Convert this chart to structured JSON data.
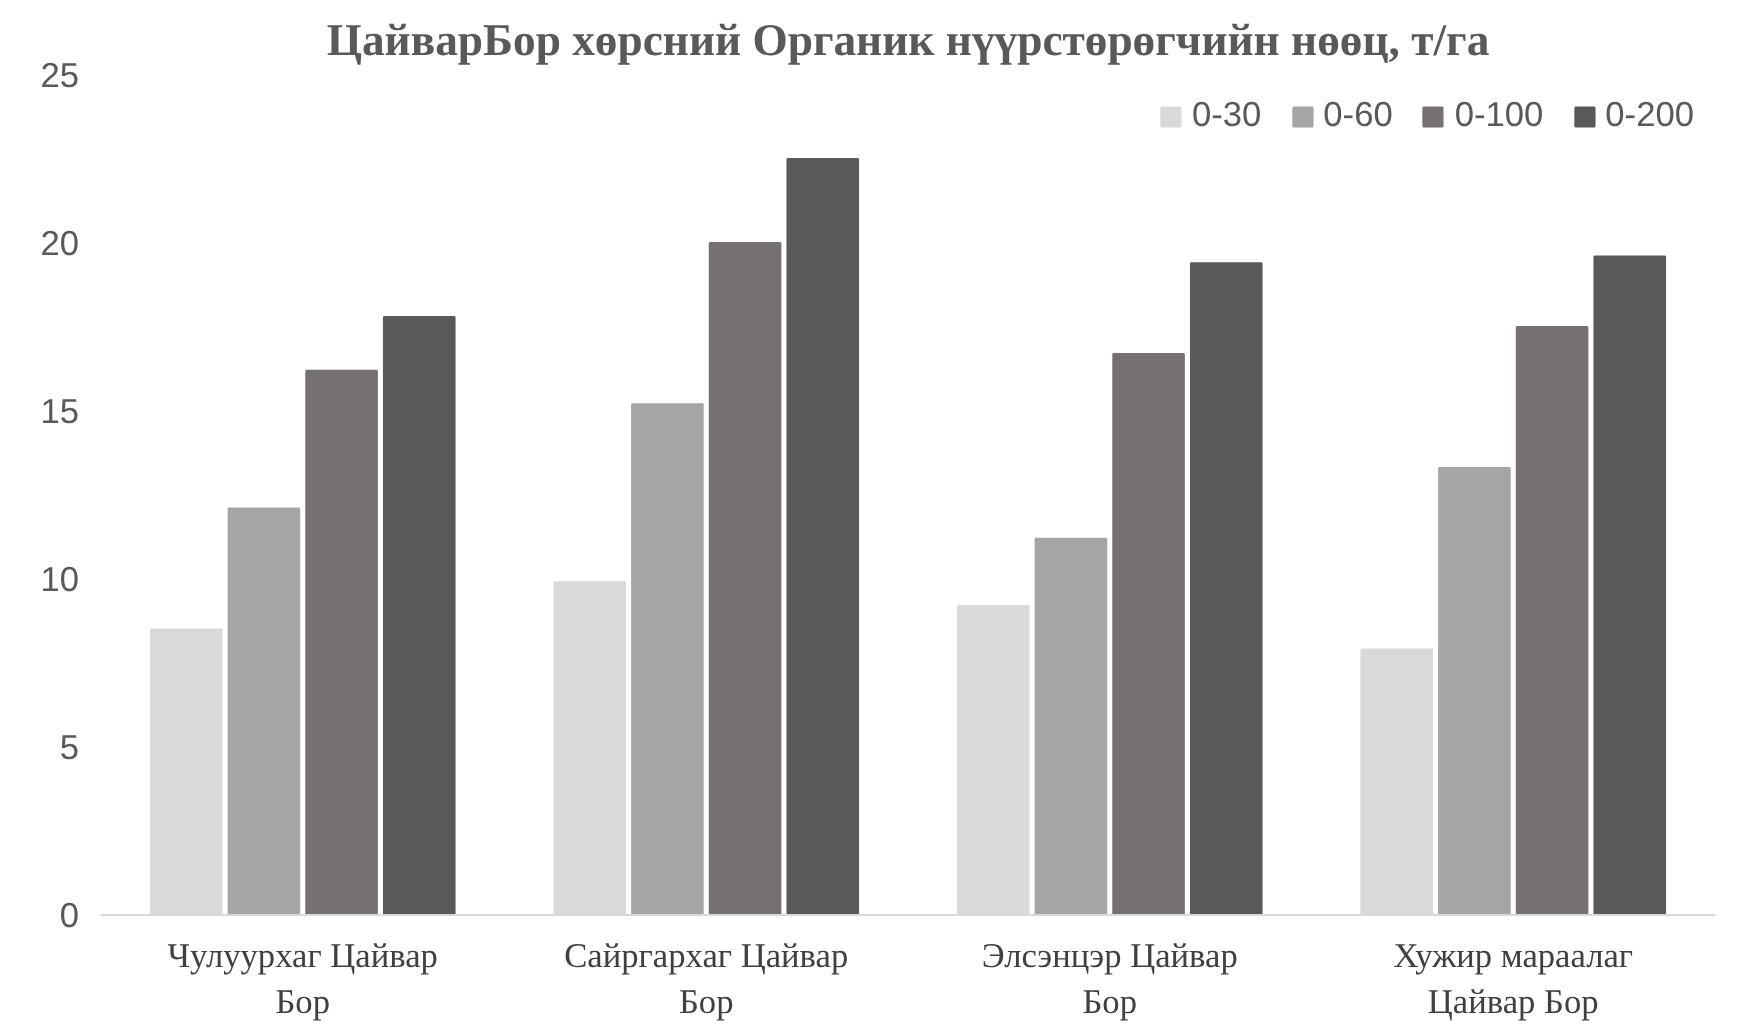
{
  "chart_data": {
    "type": "bar",
    "title": "ЦайварБор хөрсний Органик нүүрстөрөгчийн нөөц, т/га",
    "categories": [
      "Чулуурхаг Цайвар Бор",
      "Сайргархаг Цайвар Бор",
      "Элсэнцэр Цайвар Бор",
      "Хужир мараалаг Цайвар Бор"
    ],
    "series": [
      {
        "name": "0-30",
        "color": "#d9d9d9",
        "values": [
          8.5,
          9.9,
          9.2,
          7.9
        ]
      },
      {
        "name": "0-60",
        "color": "#a5a5a5",
        "values": [
          12.1,
          15.2,
          11.2,
          13.3
        ]
      },
      {
        "name": "0-100",
        "color": "#767171",
        "values": [
          16.2,
          20.0,
          16.7,
          17.5
        ]
      },
      {
        "name": "0-200",
        "color": "#595959",
        "values": [
          17.8,
          22.5,
          19.4,
          19.6
        ]
      }
    ],
    "ylim": [
      0,
      25
    ],
    "yticks": [
      0,
      5,
      10,
      15,
      20,
      25
    ],
    "grid": false,
    "legend": "top right"
  }
}
